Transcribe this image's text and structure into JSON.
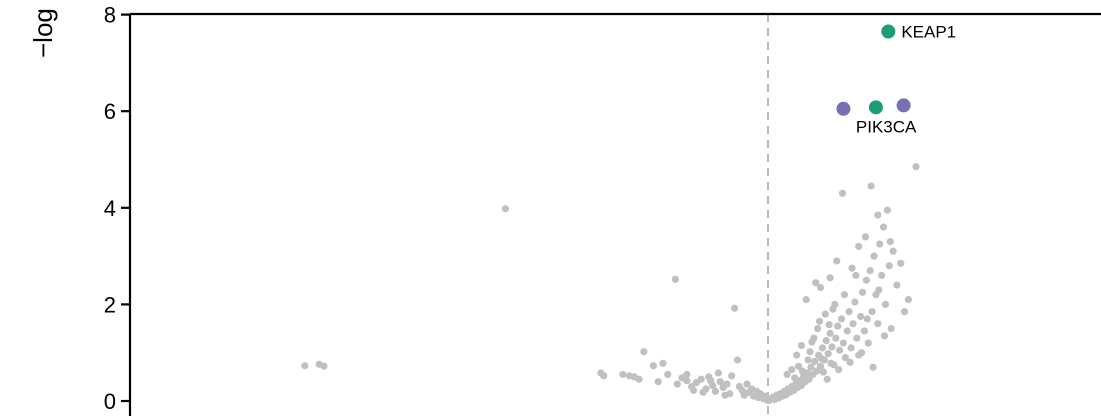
{
  "chart_data": {
    "type": "scatter",
    "ylabel": "−log",
    "yticks": [
      0,
      2,
      4,
      6,
      8
    ],
    "ylim": [
      -0.1,
      8.0
    ],
    "xlim": [
      -5.45,
      3.45
    ],
    "x_reference_line": 0,
    "grid": false,
    "colors": {
      "background_points": "#c0c0c0",
      "green": "#1b9e77",
      "purple": "#7570b3",
      "axis": "#000000",
      "reference_line": "#b8b8b8"
    },
    "highlighted": [
      {
        "label": "KEAP1",
        "x": 1.26,
        "y": 7.65,
        "color": "green"
      },
      {
        "label": "PIK3CA",
        "x": 1.13,
        "y": 6.08,
        "color": "green"
      },
      {
        "label": "",
        "x": 0.79,
        "y": 6.05,
        "color": "purple"
      },
      {
        "label": "",
        "x": 1.42,
        "y": 6.12,
        "color": "purple"
      }
    ],
    "points": [
      [
        -4.85,
        0.73
      ],
      [
        -4.7,
        0.76
      ],
      [
        -4.65,
        0.72
      ],
      [
        -2.75,
        3.98
      ],
      [
        -1.75,
        0.58
      ],
      [
        -1.72,
        0.52
      ],
      [
        -1.52,
        0.55
      ],
      [
        -1.45,
        0.52
      ],
      [
        -1.4,
        0.5
      ],
      [
        -1.35,
        0.45
      ],
      [
        -1.3,
        1.02
      ],
      [
        -1.2,
        0.73
      ],
      [
        -1.1,
        0.78
      ],
      [
        -1.15,
        0.4
      ],
      [
        -1.05,
        0.55
      ],
      [
        -0.97,
        2.52
      ],
      [
        -0.95,
        0.35
      ],
      [
        -0.9,
        0.48
      ],
      [
        -0.85,
        0.42
      ],
      [
        -0.8,
        0.3
      ],
      [
        -0.75,
        0.38
      ],
      [
        -0.7,
        0.45
      ],
      [
        -0.65,
        0.25
      ],
      [
        -0.62,
        0.5
      ],
      [
        -0.58,
        0.32
      ],
      [
        -0.55,
        0.2
      ],
      [
        -0.5,
        0.4
      ],
      [
        -0.47,
        0.28
      ],
      [
        -0.43,
        0.35
      ],
      [
        -0.4,
        0.15
      ],
      [
        -0.38,
        0.52
      ],
      [
        -0.35,
        1.92
      ],
      [
        -0.32,
        0.85
      ],
      [
        -0.3,
        0.3
      ],
      [
        -0.27,
        0.22
      ],
      [
        -0.25,
        0.12
      ],
      [
        -0.22,
        0.35
      ],
      [
        -0.2,
        0.18
      ],
      [
        -0.17,
        0.25
      ],
      [
        -0.15,
        0.1
      ],
      [
        -0.12,
        0.2
      ],
      [
        -0.1,
        0.07
      ],
      [
        -0.08,
        0.15
      ],
      [
        -0.05,
        0.05
      ],
      [
        -0.03,
        0.1
      ],
      [
        -0.01,
        0.02
      ],
      [
        -0.85,
        0.55
      ],
      [
        -0.78,
        0.22
      ],
      [
        -0.68,
        0.18
      ],
      [
        -0.6,
        0.42
      ],
      [
        -0.52,
        0.58
      ],
      [
        -0.45,
        0.12
      ],
      [
        0.01,
        0.01
      ],
      [
        0.03,
        0.04
      ],
      [
        0.05,
        0.08
      ],
      [
        0.07,
        0.03
      ],
      [
        0.09,
        0.12
      ],
      [
        0.11,
        0.06
      ],
      [
        0.13,
        0.15
      ],
      [
        0.15,
        0.1
      ],
      [
        0.17,
        0.2
      ],
      [
        0.19,
        0.13
      ],
      [
        0.21,
        0.25
      ],
      [
        0.23,
        0.18
      ],
      [
        0.25,
        0.3
      ],
      [
        0.27,
        0.22
      ],
      [
        0.29,
        0.35
      ],
      [
        0.31,
        0.28
      ],
      [
        0.33,
        0.42
      ],
      [
        0.35,
        0.32
      ],
      [
        0.37,
        0.5
      ],
      [
        0.39,
        0.4
      ],
      [
        0.41,
        0.58
      ],
      [
        0.43,
        0.45
      ],
      [
        0.45,
        0.7
      ],
      [
        0.47,
        0.55
      ],
      [
        0.49,
        0.82
      ],
      [
        0.51,
        0.62
      ],
      [
        0.53,
        0.95
      ],
      [
        0.55,
        0.72
      ],
      [
        0.57,
        1.1
      ],
      [
        0.59,
        0.85
      ],
      [
        0.61,
        1.25
      ],
      [
        0.63,
        0.98
      ],
      [
        0.65,
        1.4
      ],
      [
        0.67,
        1.12
      ],
      [
        0.69,
        0.75
      ],
      [
        0.71,
        1.3
      ],
      [
        0.73,
        1.55
      ],
      [
        0.75,
        1.05
      ],
      [
        0.77,
        1.7
      ],
      [
        0.79,
        1.2
      ],
      [
        0.81,
        0.9
      ],
      [
        0.83,
        1.45
      ],
      [
        0.85,
        1.85
      ],
      [
        0.87,
        1.1
      ],
      [
        0.89,
        1.6
      ],
      [
        0.91,
        2.05
      ],
      [
        0.93,
        1.3
      ],
      [
        0.95,
        0.95
      ],
      [
        0.97,
        1.75
      ],
      [
        0.99,
        2.25
      ],
      [
        1.01,
        1.45
      ],
      [
        1.03,
        2.5
      ],
      [
        1.05,
        1.2
      ],
      [
        1.07,
        2.7
      ],
      [
        1.09,
        1.85
      ],
      [
        1.11,
        3.0
      ],
      [
        1.13,
        2.2
      ],
      [
        1.15,
        1.6
      ],
      [
        1.17,
        3.25
      ],
      [
        1.19,
        2.6
      ],
      [
        1.21,
        3.6
      ],
      [
        1.23,
        2.0
      ],
      [
        1.25,
        3.95
      ],
      [
        1.27,
        2.8
      ],
      [
        1.29,
        1.5
      ],
      [
        1.31,
        3.1
      ],
      [
        1.35,
        2.4
      ],
      [
        1.39,
        2.85
      ],
      [
        1.43,
        1.85
      ],
      [
        1.47,
        2.1
      ],
      [
        1.55,
        4.85
      ],
      [
        0.4,
        2.1
      ],
      [
        0.5,
        2.45
      ],
      [
        0.55,
        2.35
      ],
      [
        0.6,
        1.8
      ],
      [
        0.65,
        2.55
      ],
      [
        0.72,
        2.9
      ],
      [
        0.78,
        4.3
      ],
      [
        0.88,
        2.75
      ],
      [
        0.95,
        3.2
      ],
      [
        1.02,
        3.4
      ],
      [
        1.08,
        4.45
      ],
      [
        1.15,
        3.85
      ],
      [
        0.3,
        0.95
      ],
      [
        0.35,
        1.15
      ],
      [
        0.42,
        0.85
      ],
      [
        0.48,
        1.3
      ],
      [
        0.52,
        1.5
      ],
      [
        0.58,
        0.6
      ],
      [
        0.62,
        0.45
      ],
      [
        0.68,
        1.9
      ],
      [
        0.74,
        0.65
      ],
      [
        0.8,
        2.2
      ],
      [
        0.86,
        0.8
      ],
      [
        0.92,
        2.6
      ],
      [
        0.98,
        1.0
      ],
      [
        1.04,
        1.7
      ],
      [
        1.1,
        0.7
      ],
      [
        1.16,
        2.3
      ],
      [
        1.22,
        1.35
      ],
      [
        1.28,
        3.3
      ],
      [
        0.2,
        0.55
      ],
      [
        0.25,
        0.65
      ],
      [
        0.28,
        0.48
      ],
      [
        0.32,
        0.72
      ],
      [
        0.36,
        0.62
      ],
      [
        0.44,
        1.02
      ],
      [
        0.46,
        1.22
      ],
      [
        0.54,
        1.65
      ],
      [
        0.56,
        0.88
      ],
      [
        0.64,
        1.58
      ],
      [
        0.66,
        0.78
      ],
      [
        0.7,
        2.0
      ]
    ]
  }
}
